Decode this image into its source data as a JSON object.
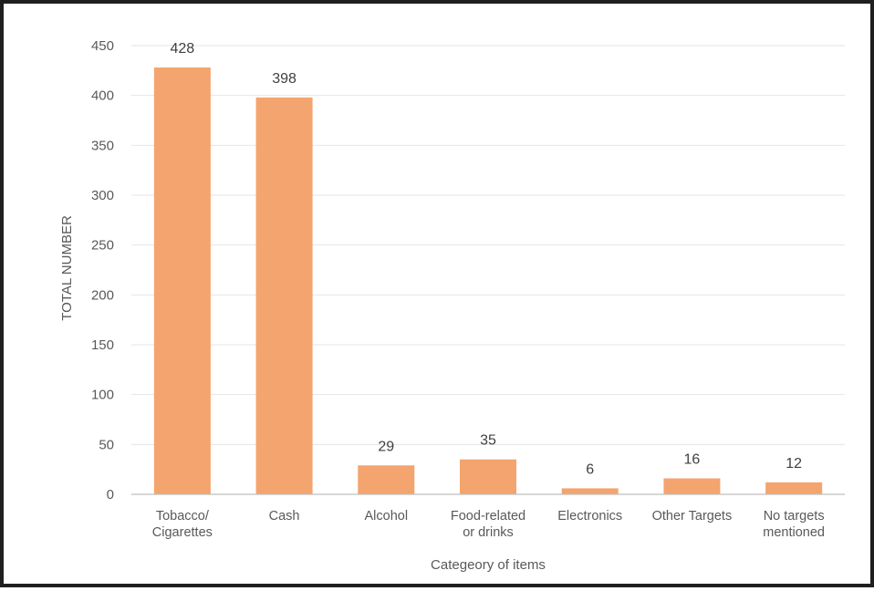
{
  "chart_data": {
    "type": "bar",
    "categories": [
      [
        "Tobacco/",
        "Cigarettes"
      ],
      [
        "Cash"
      ],
      [
        "Alcohol"
      ],
      [
        "Food-related",
        "or drinks"
      ],
      [
        "Electronics"
      ],
      [
        "Other Targets"
      ],
      [
        "No targets",
        "mentioned"
      ]
    ],
    "values": [
      428,
      398,
      29,
      35,
      6,
      16,
      12
    ],
    "title": "",
    "xlabel": "Categeory of items",
    "ylabel": "TOTAL NUMBER",
    "ylim": [
      0,
      450
    ],
    "yticks": [
      0,
      50,
      100,
      150,
      200,
      250,
      300,
      350,
      400,
      450
    ],
    "grid": true,
    "legend": "none",
    "colors": {
      "bar": "#F4A46E",
      "grid": "#E6E6E6",
      "axis": "#BFBFBF",
      "text": "#595959",
      "frame": "#1F1F1F"
    }
  }
}
